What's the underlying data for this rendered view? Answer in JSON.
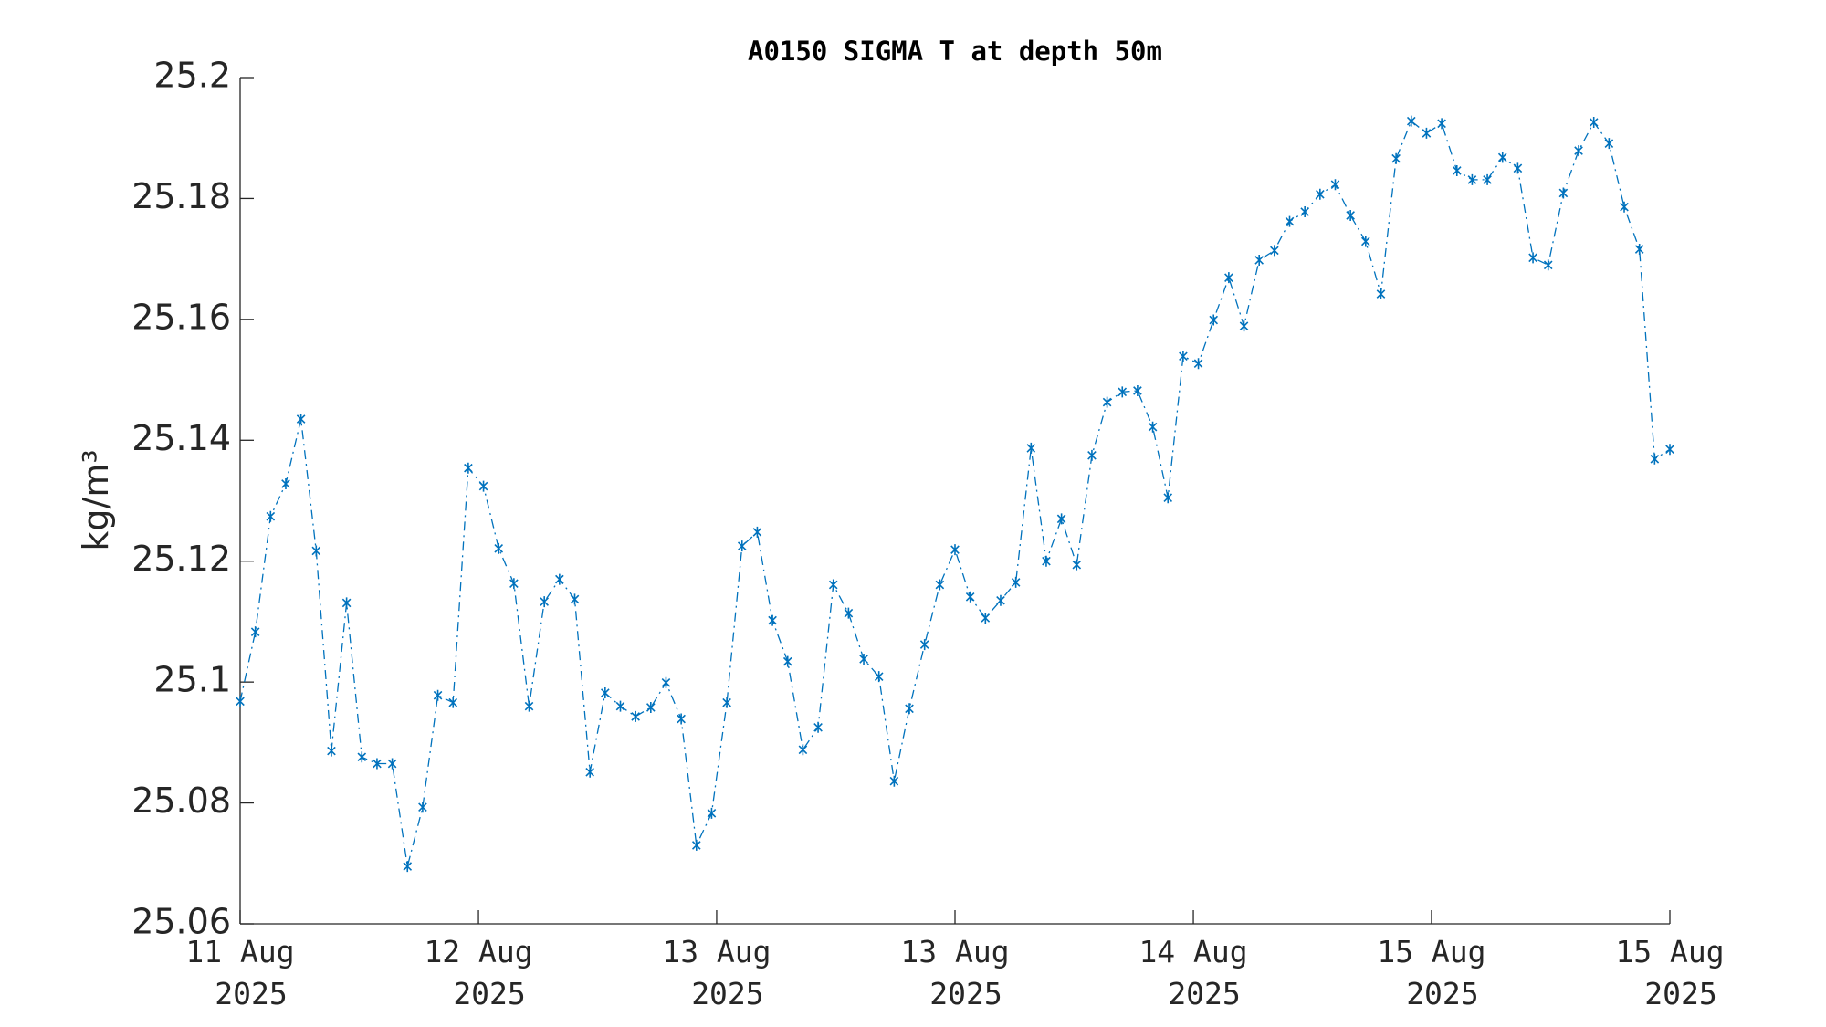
{
  "chart_data": {
    "type": "line",
    "title": "A0150 SIGMA T at depth 50m",
    "y_label": "kg/m³",
    "x": [
      0,
      1,
      2,
      3,
      4,
      5,
      6,
      7,
      8,
      9,
      10,
      11,
      12,
      13,
      14,
      15,
      16,
      17,
      18,
      19,
      20,
      21,
      22,
      23,
      24,
      25,
      26,
      27,
      28,
      29,
      30,
      31,
      32,
      33,
      34,
      35,
      36,
      37,
      38,
      39,
      40,
      41,
      42,
      43,
      44,
      45,
      46,
      47,
      48,
      49,
      50,
      51,
      52,
      53,
      54,
      55,
      56,
      57,
      58,
      59,
      60,
      61,
      62,
      63,
      64,
      65,
      66,
      67,
      68,
      69,
      70,
      71,
      72,
      73,
      74,
      75,
      76,
      77,
      78,
      79,
      80,
      81,
      82,
      83,
      84,
      85,
      86,
      87,
      88,
      89,
      90,
      91,
      92,
      93,
      94
    ],
    "series": [
      {
        "name": "SIGMA T",
        "color": "#0072bd",
        "values": [
          25.0968,
          25.1083,
          25.1274,
          25.1328,
          25.1435,
          25.1217,
          25.0886,
          25.1131,
          25.0876,
          25.0865,
          25.0865,
          25.0695,
          25.0793,
          25.0978,
          25.0966,
          25.1354,
          25.1324,
          25.1221,
          25.1163,
          25.096,
          25.1133,
          25.117,
          25.1137,
          25.0851,
          25.0982,
          25.096,
          25.0943,
          25.0958,
          25.0999,
          25.0939,
          25.073,
          25.0783,
          25.0966,
          25.1225,
          25.1248,
          25.1102,
          25.1034,
          25.0888,
          25.0925,
          25.1161,
          25.1114,
          25.1038,
          25.1009,
          25.0836,
          25.0956,
          25.1062,
          25.1161,
          25.1219,
          25.1141,
          25.1106,
          25.1135,
          25.1165,
          25.1387,
          25.12,
          25.127,
          25.1194,
          25.1375,
          25.1463,
          25.148,
          25.1482,
          25.1422,
          25.1305,
          25.1539,
          25.1527,
          25.1599,
          25.1669,
          25.1589,
          25.1698,
          25.1714,
          25.1762,
          25.1778,
          25.1807,
          25.1823,
          25.1772,
          25.1729,
          25.1642,
          25.1866,
          25.1928,
          25.1908,
          25.1924,
          25.1846,
          25.1831,
          25.1831,
          25.1868,
          25.185,
          25.1702,
          25.169,
          25.1809,
          25.1879,
          25.1926,
          25.1891,
          25.1786,
          25.1716,
          25.1369,
          25.1385
        ]
      }
    ],
    "xlim": [
      0,
      94
    ],
    "xticks": [
      {
        "value": 0,
        "label": "11 Aug 2025"
      },
      {
        "value": 15.67,
        "label": "12 Aug 2025"
      },
      {
        "value": 31.33,
        "label": "13 Aug 2025"
      },
      {
        "value": 47,
        "label": "13 Aug 2025"
      },
      {
        "value": 62.67,
        "label": "14 Aug 2025"
      },
      {
        "value": 78.33,
        "label": "15 Aug 2025"
      },
      {
        "value": 94,
        "label": "15 Aug 2025"
      }
    ],
    "ylim": [
      25.06,
      25.2
    ],
    "yticks": [
      25.06,
      25.08,
      25.1,
      25.12,
      25.14,
      25.16,
      25.18,
      25.2
    ],
    "grid": false
  }
}
